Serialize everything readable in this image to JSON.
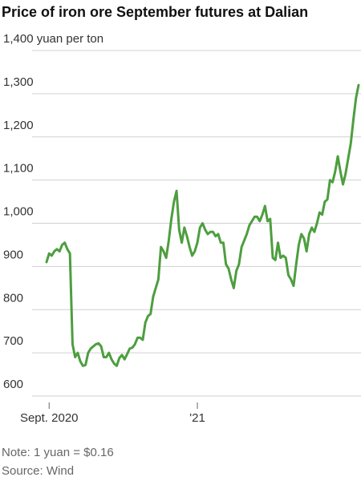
{
  "chart_data": {
    "type": "line",
    "title": "Price of iron ore September futures at Dalian",
    "note": "Note: 1 yuan = $0.16",
    "source": "Source: Wind",
    "color": "#4d9e3f",
    "grid": true,
    "ylim": [
      600,
      1400
    ],
    "yticks": [
      600,
      700,
      800,
      900,
      {
        "value": 1000,
        "label": "1,000"
      },
      {
        "value": 1100,
        "label": "1,100"
      },
      {
        "value": 1200,
        "label": "1,200"
      },
      {
        "value": 1300,
        "label": "1,300"
      },
      {
        "value": 1400,
        "label": "1,400 yuan per ton"
      }
    ],
    "categories": [
      null,
      "Sept. 2020",
      null,
      null,
      null,
      null,
      null,
      null,
      null,
      null,
      null,
      null,
      null,
      null,
      null,
      null,
      null,
      null,
      null,
      null,
      null,
      null,
      null,
      null,
      null,
      null,
      null,
      null,
      null,
      null,
      null,
      null,
      null,
      null,
      null,
      null,
      null,
      null,
      null,
      null,
      null,
      null,
      null,
      null,
      null,
      null,
      null,
      null,
      null,
      null,
      null,
      null,
      null,
      null,
      null,
      null,
      null,
      null,
      "'21",
      null,
      null,
      null,
      null,
      null,
      null,
      null,
      null,
      null,
      null,
      null,
      null,
      null,
      null,
      null,
      null,
      null,
      null,
      null,
      null,
      null,
      null,
      null,
      null,
      null,
      null,
      null,
      null,
      null,
      null,
      null,
      null,
      null,
      null,
      null,
      null,
      null,
      null,
      null,
      null,
      null,
      null,
      null,
      null,
      null,
      null,
      null,
      null,
      null,
      null,
      null,
      null,
      null,
      null,
      null,
      null,
      null,
      null,
      null,
      null,
      null,
      null
    ],
    "values": [
      910,
      930,
      925,
      935,
      940,
      935,
      950,
      955,
      940,
      930,
      720,
      690,
      700,
      680,
      670,
      672,
      700,
      710,
      715,
      720,
      722,
      715,
      690,
      690,
      700,
      685,
      675,
      670,
      688,
      695,
      685,
      697,
      710,
      712,
      720,
      735,
      735,
      730,
      770,
      785,
      790,
      830,
      850,
      870,
      945,
      935,
      920,
      960,
      1010,
      1050,
      1075,
      985,
      955,
      990,
      970,
      945,
      925,
      935,
      955,
      990,
      1000,
      985,
      975,
      980,
      980,
      970,
      975,
      955,
      955,
      905,
      895,
      870,
      850,
      890,
      905,
      945,
      960,
      975,
      995,
      1005,
      1015,
      1015,
      1005,
      1020,
      1040,
      1005,
      1010,
      920,
      915,
      955,
      920,
      925,
      920,
      880,
      870,
      855,
      905,
      950,
      975,
      965,
      935,
      975,
      990,
      980,
      1000,
      1025,
      1020,
      1050,
      1055,
      1100,
      1095,
      1120,
      1155,
      1120,
      1090,
      1115,
      1150,
      1185,
      1240,
      1290,
      1320
    ]
  }
}
